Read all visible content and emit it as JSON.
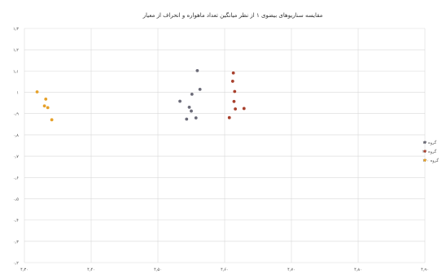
{
  "chart_data": {
    "type": "scatter",
    "title": "مقایسه سناریوهای بیضوی ۱ از نظر میانگین تعداد ماهواره و انحراف از معیار",
    "xlabel": "",
    "ylabel": "",
    "xlim": [
      4.3,
      4.9
    ],
    "ylim": [
      0.2,
      1.3
    ],
    "x_ticks": [
      {
        "value": 4.3,
        "label": "۴٫۳۰"
      },
      {
        "value": 4.4,
        "label": "۴٫۴۰"
      },
      {
        "value": 4.5,
        "label": "۴٫۵۰"
      },
      {
        "value": 4.6,
        "label": "۴٫۶۰"
      },
      {
        "value": 4.7,
        "label": "۴٫۷۰"
      },
      {
        "value": 4.8,
        "label": "۴٫۸۰"
      },
      {
        "value": 4.9,
        "label": "۴٫۹۰"
      }
    ],
    "y_ticks": [
      {
        "value": 0.2,
        "label": "۰٫۲"
      },
      {
        "value": 0.3,
        "label": "۰٫۳"
      },
      {
        "value": 0.4,
        "label": "۰٫۴"
      },
      {
        "value": 0.5,
        "label": "۰٫۵"
      },
      {
        "value": 0.6,
        "label": "۰٫۶"
      },
      {
        "value": 0.7,
        "label": "۰٫۷"
      },
      {
        "value": 0.8,
        "label": "۰٫۸"
      },
      {
        "value": 0.9,
        "label": "۰٫۹"
      },
      {
        "value": 1.0,
        "label": "۱"
      },
      {
        "value": 1.1,
        "label": "۱٫۱"
      },
      {
        "value": 1.2,
        "label": "۱٫۲"
      },
      {
        "value": 1.3,
        "label": "۱٫۳"
      }
    ],
    "grid": true,
    "legend_position": "right",
    "series": [
      {
        "name": "گروه ۱۲",
        "color": "#6b6b78",
        "points": [
          {
            "x": 4.533,
            "y": 0.958
          },
          {
            "x": 4.543,
            "y": 0.874
          },
          {
            "x": 4.547,
            "y": 0.93
          },
          {
            "x": 4.55,
            "y": 0.912
          },
          {
            "x": 4.563,
            "y": 1.014
          },
          {
            "x": 4.559,
            "y": 1.102
          },
          {
            "x": 4.551,
            "y": 0.991
          },
          {
            "x": 4.557,
            "y": 0.88
          }
        ]
      },
      {
        "name": "گروه ۲۴",
        "color": "#a8402d",
        "points": [
          {
            "x": 4.607,
            "y": 0.881
          },
          {
            "x": 4.613,
            "y": 1.091
          },
          {
            "x": 4.615,
            "y": 1.004
          },
          {
            "x": 4.616,
            "y": 0.922
          },
          {
            "x": 4.614,
            "y": 0.957
          },
          {
            "x": 4.612,
            "y": 1.052
          },
          {
            "x": 4.629,
            "y": 0.924
          }
        ]
      },
      {
        "name": "گروه ۱۲۰",
        "color": "#e6a12a",
        "points": [
          {
            "x": 4.319,
            "y": 1.002
          },
          {
            "x": 4.33,
            "y": 0.936
          },
          {
            "x": 4.332,
            "y": 0.968
          },
          {
            "x": 4.335,
            "y": 0.928
          },
          {
            "x": 4.341,
            "y": 0.871
          }
        ]
      }
    ]
  }
}
